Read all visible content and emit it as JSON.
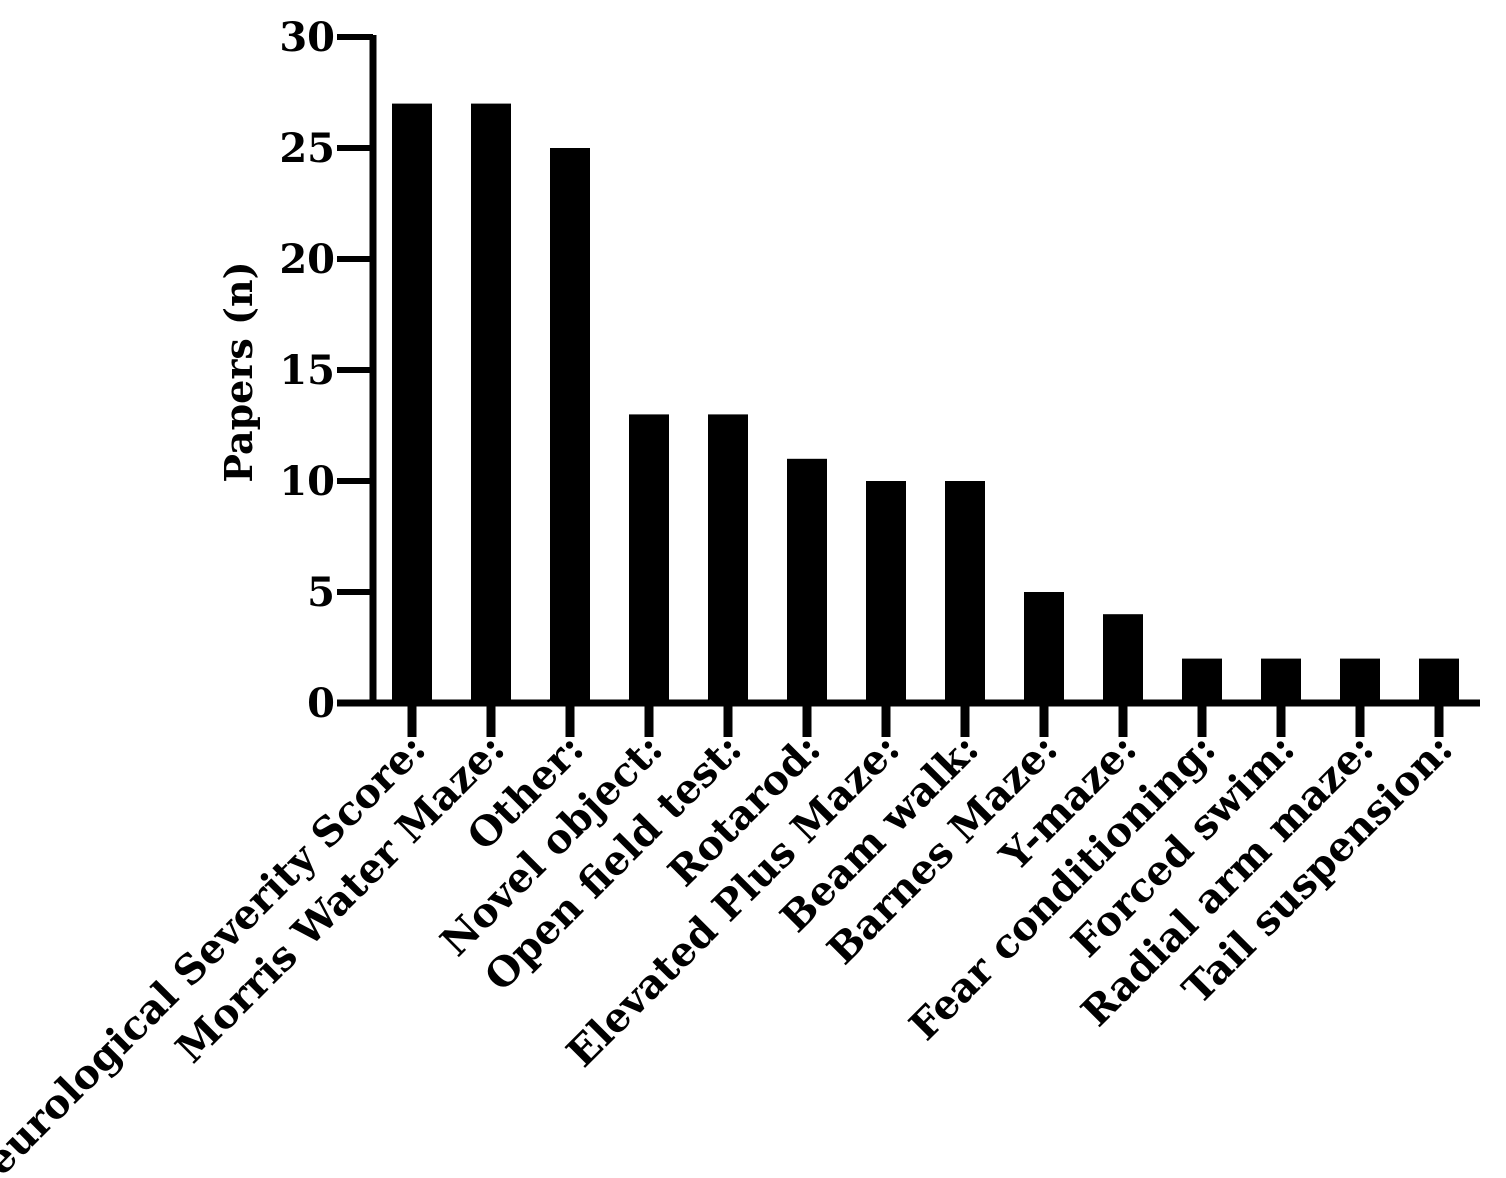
{
  "chart_data": {
    "type": "bar",
    "title": "",
    "xlabel": "",
    "ylabel": "Papers (n)",
    "ylim": [
      0,
      30
    ],
    "yticks": [
      0,
      5,
      10,
      15,
      20,
      25,
      30
    ],
    "grid": false,
    "legend": "none",
    "bar_color": "#000000",
    "categories": [
      "Neurological Severity Score:",
      "Morris Water Maze:",
      "Other:",
      "Novel object:",
      "Open field test:",
      "Rotarod:",
      "Elevated Plus Maze:",
      "Beam walk:",
      "Barnes Maze:",
      "Y-maze:",
      "Fear conditioning:",
      "Forced swim:",
      "Radial arm maze:",
      "Tail suspension:"
    ],
    "values": [
      27,
      27,
      25,
      13,
      13,
      11,
      10,
      10,
      5,
      4,
      2,
      2,
      2,
      2
    ]
  }
}
